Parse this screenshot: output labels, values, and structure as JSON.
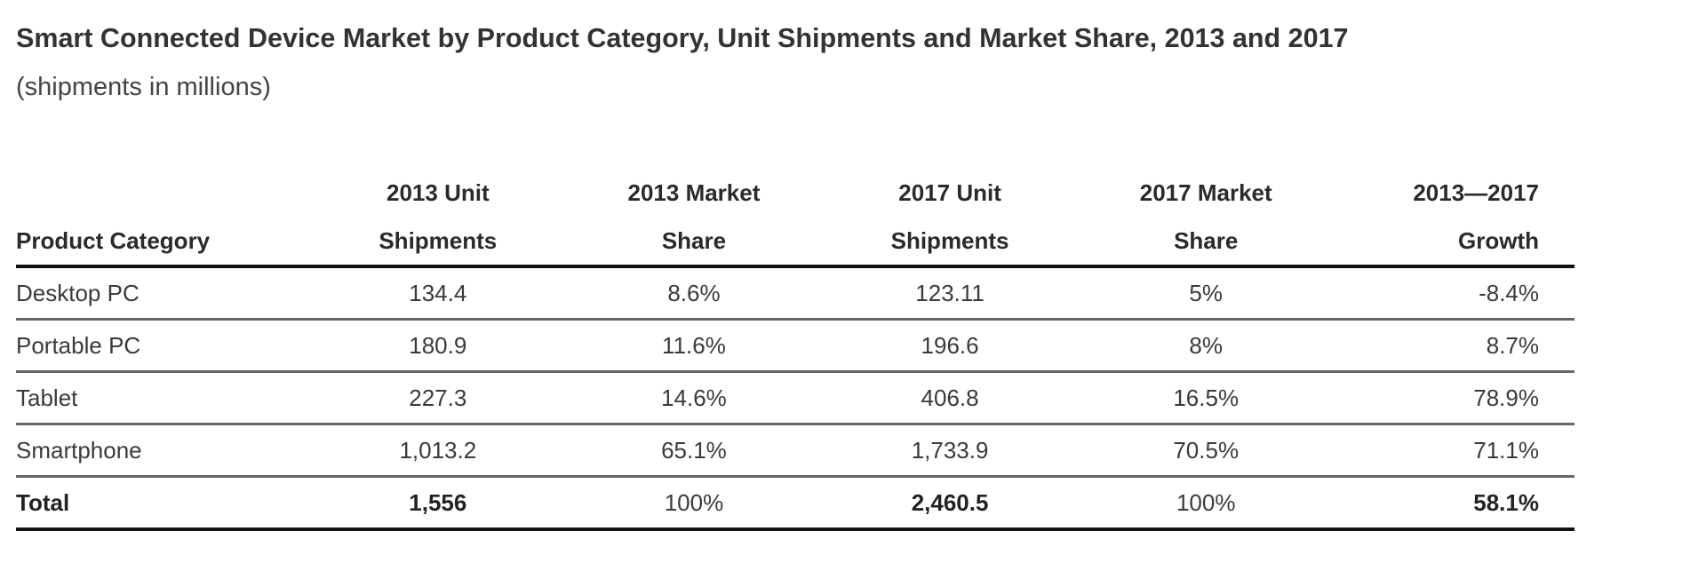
{
  "title": "Smart Connected Device Market by Product Category, Unit Shipments and Market Share, 2013 and 2017",
  "subtitle": "(shipments in millions)",
  "table": {
    "headers": [
      {
        "line1": "",
        "line2": "Product Category"
      },
      {
        "line1": "2013 Unit",
        "line2": "Shipments"
      },
      {
        "line1": "2013 Market",
        "line2": "Share"
      },
      {
        "line1": "2017 Unit",
        "line2": "Shipments"
      },
      {
        "line1": "2017 Market",
        "line2": "Share"
      },
      {
        "line1": "2013—2017",
        "line2": "Growth"
      }
    ],
    "rows": [
      [
        "Desktop PC",
        "134.4",
        "8.6%",
        "123.11",
        "5%",
        "-8.4%"
      ],
      [
        "Portable PC",
        "180.9",
        "11.6%",
        "196.6",
        "8%",
        "8.7%"
      ],
      [
        "Tablet",
        "227.3",
        "14.6%",
        "406.8",
        "16.5%",
        "78.9%"
      ],
      [
        "Smartphone",
        "1,013.2",
        "65.1%",
        "1,733.9",
        "70.5%",
        "71.1%"
      ]
    ],
    "total": [
      "Total",
      "1,556",
      "100%",
      "2,460.5",
      "100%",
      "58.1%"
    ]
  }
}
